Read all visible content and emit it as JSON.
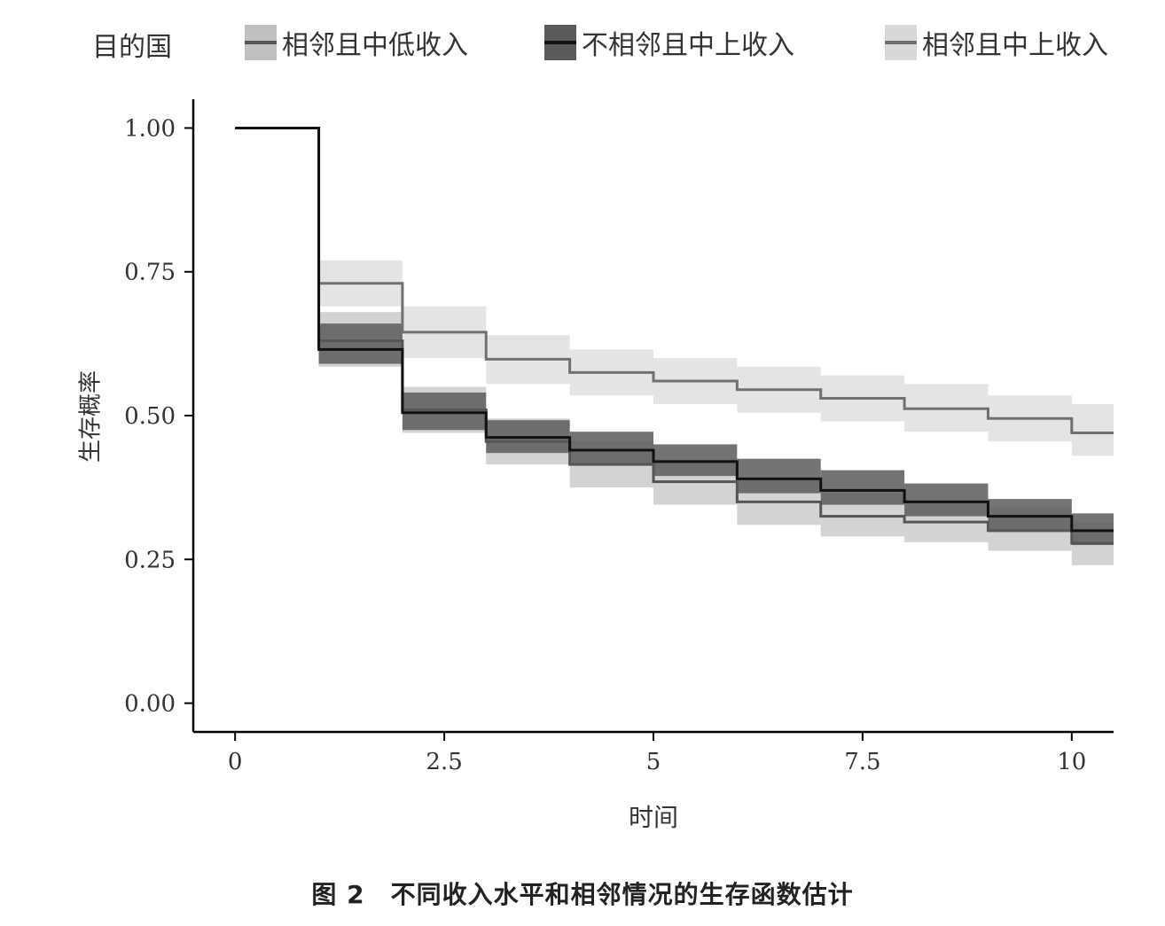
{
  "legend": {
    "title": "目的国",
    "items": [
      {
        "label": "相邻且中低收入",
        "line_color": "#555555",
        "band_color": "#c0c0c0"
      },
      {
        "label": "不相邻且中上收入",
        "line_color": "#111111",
        "band_color": "#5a5a5a"
      },
      {
        "label": "相邻且中上收入",
        "line_color": "#707070",
        "band_color": "#d8d8d8"
      }
    ]
  },
  "caption": "图 2　不同收入水平和相邻情况的生存函数估计",
  "chart_data": {
    "type": "line",
    "step": true,
    "xlabel": "时间",
    "ylabel": "生存概率",
    "xlim": [
      -0.5,
      10.5
    ],
    "ylim": [
      -0.05,
      1.05
    ],
    "xticks": [
      0,
      2.5,
      5,
      7.5,
      10
    ],
    "xtick_labels": [
      "0",
      "2.5",
      "5",
      "7.5",
      "10"
    ],
    "yticks": [
      0,
      0.25,
      0.5,
      0.75,
      1.0
    ],
    "ytick_labels": [
      "0.00",
      "0.25",
      "0.50",
      "0.75",
      "1.00"
    ],
    "grid": false,
    "legend_position": "top",
    "series": [
      {
        "name": "相邻且中上收入",
        "line_color": "#707070",
        "band_color": "#d8d8d8",
        "x": [
          0,
          1,
          2,
          3,
          4,
          5,
          6,
          7,
          8,
          9,
          10,
          10.5
        ],
        "y": [
          1.0,
          0.73,
          0.645,
          0.598,
          0.575,
          0.56,
          0.545,
          0.53,
          0.512,
          0.495,
          0.47,
          0.47
        ],
        "lower": [
          1.0,
          0.69,
          0.6,
          0.555,
          0.535,
          0.52,
          0.505,
          0.49,
          0.472,
          0.455,
          0.43,
          0.43
        ],
        "upper": [
          1.0,
          0.77,
          0.69,
          0.64,
          0.615,
          0.6,
          0.585,
          0.57,
          0.555,
          0.535,
          0.52,
          0.52
        ]
      },
      {
        "name": "相邻且中低收入",
        "line_color": "#555555",
        "band_color": "#c0c0c0",
        "x": [
          0,
          1,
          2,
          3,
          4,
          5,
          6,
          7,
          8,
          9,
          10,
          10.5
        ],
        "y": [
          1.0,
          0.63,
          0.51,
          0.455,
          0.415,
          0.385,
          0.35,
          0.325,
          0.315,
          0.3,
          0.278,
          0.278
        ],
        "lower": [
          1.0,
          0.585,
          0.47,
          0.415,
          0.375,
          0.345,
          0.31,
          0.29,
          0.28,
          0.265,
          0.24,
          0.24
        ],
        "upper": [
          1.0,
          0.68,
          0.55,
          0.495,
          0.455,
          0.425,
          0.39,
          0.365,
          0.355,
          0.34,
          0.315,
          0.315
        ]
      },
      {
        "name": "不相邻且中上收入",
        "line_color": "#111111",
        "band_color": "#5a5a5a",
        "x": [
          0,
          1,
          2,
          3,
          4,
          5,
          6,
          7,
          8,
          9,
          10,
          10.5
        ],
        "y": [
          1.0,
          0.615,
          0.505,
          0.462,
          0.44,
          0.42,
          0.39,
          0.37,
          0.35,
          0.325,
          0.3,
          0.3
        ],
        "lower": [
          1.0,
          0.59,
          0.475,
          0.435,
          0.415,
          0.395,
          0.365,
          0.345,
          0.325,
          0.3,
          0.275,
          0.275
        ],
        "upper": [
          1.0,
          0.66,
          0.54,
          0.492,
          0.472,
          0.45,
          0.425,
          0.405,
          0.382,
          0.355,
          0.33,
          0.33
        ]
      }
    ]
  }
}
